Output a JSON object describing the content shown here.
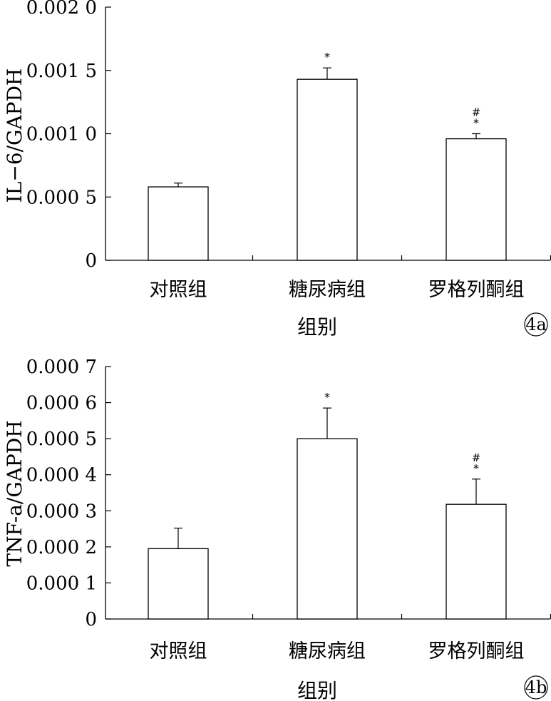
{
  "chart_data": [
    {
      "type": "bar",
      "panel_label": "4a",
      "categories": [
        "对照组",
        "糖尿病组",
        "罗格列酮组"
      ],
      "values": [
        0.00058,
        0.00143,
        0.00096
      ],
      "errors": [
        3e-05,
        9e-05,
        4e-05
      ],
      "significance": [
        [],
        [
          "*"
        ],
        [
          "#",
          "*"
        ]
      ],
      "xlabel": "组别",
      "ylabel": "IL−6/GAPDH",
      "ylim": [
        0,
        0.002
      ],
      "yticks": [
        0,
        0.0005,
        0.001,
        0.0015,
        0.002
      ],
      "ytick_labels": [
        "0",
        "0.000 5",
        "0.001 0",
        "0.001 5",
        "0.002 0"
      ],
      "grid": false
    },
    {
      "type": "bar",
      "panel_label": "4b",
      "categories": [
        "对照组",
        "糖尿病组",
        "罗格列酮组"
      ],
      "values": [
        0.000195,
        0.0005,
        0.000318
      ],
      "errors": [
        5.7e-05,
        8.5e-05,
        7e-05
      ],
      "significance": [
        [],
        [
          "*"
        ],
        [
          "#",
          "*"
        ]
      ],
      "xlabel": "组别",
      "ylabel": "TNF-a/GAPDH",
      "ylim": [
        0,
        0.0007
      ],
      "yticks": [
        0,
        0.0001,
        0.0002,
        0.0003,
        0.0004,
        0.0005,
        0.0006,
        0.0007
      ],
      "ytick_labels": [
        "0",
        "0.000 1",
        "0.000 2",
        "0.000 3",
        "0.000 4",
        "0.000 5",
        "0.000 6",
        "0.000 7"
      ],
      "grid": false
    }
  ]
}
